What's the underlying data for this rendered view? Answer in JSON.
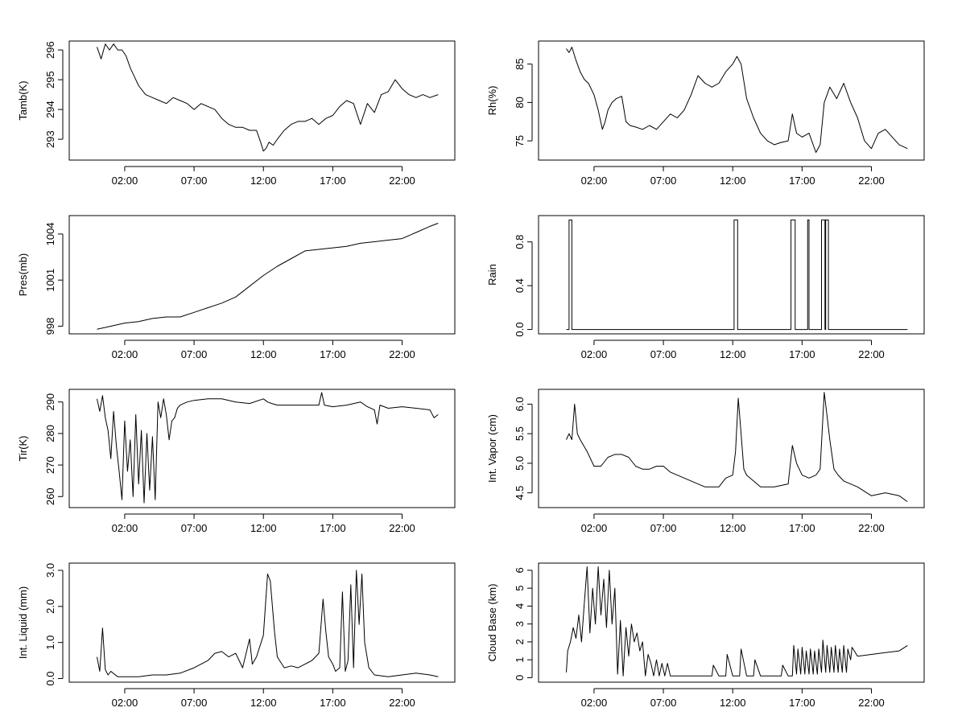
{
  "chart_data": [
    {
      "type": "line",
      "ylabel": "Tamb(K)",
      "x_ticks": [
        "02:00",
        "07:00",
        "12:00",
        "17:00",
        "22:00"
      ],
      "y_ticks": [
        "293",
        "294",
        "295",
        "296"
      ],
      "xlim_hours": [
        -2.0,
        25.8
      ],
      "ylim": [
        292.3,
        296.3
      ],
      "series": [
        {
          "x": [
            0.0,
            0.3,
            0.6,
            0.9,
            1.2,
            1.5,
            1.8,
            2.1,
            2.4,
            2.7,
            3.0,
            3.5,
            4.0,
            4.5,
            5.0,
            5.5,
            6.0,
            6.5,
            7.0,
            7.5,
            8.0,
            8.5,
            9.0,
            9.5,
            10.0,
            10.5,
            11.0,
            11.5,
            11.8,
            12.0,
            12.2,
            12.4,
            12.7,
            13.0,
            13.5,
            14.0,
            14.5,
            15.0,
            15.5,
            16.0,
            16.5,
            17.0,
            17.5,
            18.0,
            18.5,
            19.0,
            19.5,
            20.0,
            20.5,
            21.0,
            21.5,
            22.0,
            22.5,
            23.0,
            23.5,
            24.0,
            24.6
          ],
          "y": [
            296.1,
            295.7,
            296.2,
            296.0,
            296.2,
            296.0,
            296.0,
            295.8,
            295.4,
            295.1,
            294.8,
            294.5,
            294.4,
            294.3,
            294.2,
            294.4,
            294.3,
            294.2,
            294.0,
            294.2,
            294.1,
            294.0,
            293.7,
            293.5,
            293.4,
            293.4,
            293.3,
            293.3,
            292.9,
            292.6,
            292.7,
            292.9,
            292.8,
            293.0,
            293.3,
            293.5,
            293.6,
            293.6,
            293.7,
            293.5,
            293.7,
            293.8,
            294.1,
            294.3,
            294.2,
            293.5,
            294.2,
            293.9,
            294.5,
            294.6,
            295.0,
            294.7,
            294.5,
            294.4,
            294.5,
            294.4,
            294.5
          ]
        }
      ]
    },
    {
      "type": "line",
      "ylabel": "Rh(%)",
      "x_ticks": [
        "02:00",
        "07:00",
        "12:00",
        "17:00",
        "22:00"
      ],
      "y_ticks": [
        "75",
        "80",
        "85"
      ],
      "xlim_hours": [
        -2.0,
        25.8
      ],
      "ylim": [
        72.5,
        88.0
      ],
      "series": [
        {
          "x": [
            0.0,
            0.2,
            0.4,
            0.7,
            1.0,
            1.3,
            1.6,
            2.0,
            2.3,
            2.6,
            2.8,
            3.0,
            3.3,
            3.6,
            4.0,
            4.3,
            4.6,
            5.0,
            5.5,
            6.0,
            6.5,
            7.0,
            7.5,
            8.0,
            8.5,
            9.0,
            9.5,
            10.0,
            10.5,
            11.0,
            11.5,
            12.0,
            12.3,
            12.6,
            13.0,
            13.5,
            14.0,
            14.5,
            15.0,
            15.5,
            16.0,
            16.3,
            16.6,
            17.0,
            17.5,
            18.0,
            18.3,
            18.6,
            19.0,
            19.5,
            20.0,
            20.5,
            21.0,
            21.5,
            22.0,
            22.5,
            23.0,
            23.5,
            24.0,
            24.6
          ],
          "y": [
            87.0,
            86.5,
            87.2,
            85.5,
            84.0,
            83.0,
            82.5,
            81.0,
            79.0,
            76.5,
            77.5,
            79.0,
            80.0,
            80.5,
            80.8,
            77.5,
            77.0,
            76.8,
            76.5,
            77.0,
            76.5,
            77.5,
            78.5,
            78.0,
            79.0,
            81.0,
            83.5,
            82.5,
            82.0,
            82.5,
            84.0,
            85.0,
            86.0,
            85.0,
            80.5,
            78.0,
            76.0,
            75.0,
            74.5,
            74.8,
            75.0,
            78.5,
            76.0,
            75.5,
            76.0,
            73.5,
            74.5,
            80.0,
            82.0,
            80.5,
            82.5,
            80.0,
            78.0,
            75.0,
            74.0,
            76.0,
            76.5,
            75.5,
            74.5,
            74.0
          ]
        }
      ]
    },
    {
      "type": "line",
      "ylabel": "Pres(mb)",
      "x_ticks": [
        "02:00",
        "07:00",
        "12:00",
        "17:00",
        "22:00"
      ],
      "y_ticks": [
        "998",
        "1001",
        "1004"
      ],
      "xlim_hours": [
        -2.0,
        25.8
      ],
      "ylim": [
        997.5,
        1005.2
      ],
      "series": [
        {
          "x": [
            0.0,
            1.0,
            2.0,
            3.0,
            4.0,
            5.0,
            6.0,
            7.0,
            8.0,
            9.0,
            10.0,
            11.0,
            12.0,
            13.0,
            14.0,
            15.0,
            16.0,
            17.0,
            18.0,
            19.0,
            20.0,
            21.0,
            22.0,
            23.0,
            24.0,
            24.6
          ],
          "y": [
            997.8,
            998.0,
            998.2,
            998.3,
            998.5,
            998.6,
            998.6,
            998.9,
            999.2,
            999.5,
            999.9,
            1000.6,
            1001.3,
            1001.9,
            1002.4,
            1002.9,
            1003.0,
            1003.1,
            1003.2,
            1003.4,
            1003.5,
            1003.6,
            1003.7,
            1004.1,
            1004.5,
            1004.7
          ]
        }
      ]
    },
    {
      "type": "line",
      "ylabel": "Rain",
      "x_ticks": [
        "02:00",
        "07:00",
        "12:00",
        "17:00",
        "22:00"
      ],
      "y_ticks": [
        "0.0",
        "0.4",
        "0.8"
      ],
      "xlim_hours": [
        -2.0,
        25.8
      ],
      "ylim": [
        -0.04,
        1.04
      ],
      "series": [
        {
          "x": [
            0.0,
            0.2,
            0.2,
            0.4,
            0.4,
            12.1,
            12.1,
            12.35,
            12.35,
            16.2,
            16.2,
            16.5,
            16.5,
            17.4,
            17.4,
            17.5,
            17.5,
            18.4,
            18.4,
            18.65,
            18.65,
            18.7,
            18.7,
            18.9,
            18.9,
            24.6
          ],
          "y": [
            0,
            0,
            1,
            1,
            0,
            0,
            1,
            1,
            0,
            0,
            1,
            1,
            0,
            0,
            1,
            1,
            0,
            0,
            1,
            1,
            0,
            0,
            1,
            1,
            0,
            0
          ]
        }
      ]
    },
    {
      "type": "line",
      "ylabel": "Tir(K)",
      "x_ticks": [
        "02:00",
        "07:00",
        "12:00",
        "17:00",
        "22:00"
      ],
      "y_ticks": [
        "260",
        "270",
        "280",
        "290"
      ],
      "xlim_hours": [
        -2.0,
        25.8
      ],
      "ylim": [
        256.5,
        294.0
      ],
      "series": [
        {
          "x": [
            0.0,
            0.2,
            0.4,
            0.6,
            0.8,
            1.0,
            1.2,
            1.4,
            1.6,
            1.8,
            2.0,
            2.2,
            2.4,
            2.6,
            2.8,
            3.0,
            3.2,
            3.4,
            3.6,
            3.8,
            4.0,
            4.2,
            4.4,
            4.6,
            4.8,
            5.0,
            5.2,
            5.4,
            5.6,
            5.8,
            6.0,
            6.5,
            7.0,
            8.0,
            9.0,
            10.0,
            11.0,
            12.0,
            12.3,
            12.6,
            13.0,
            14.0,
            15.0,
            16.0,
            16.2,
            16.4,
            17.0,
            18.0,
            19.0,
            19.5,
            20.0,
            20.2,
            20.4,
            21.0,
            22.0,
            23.0,
            24.0,
            24.3,
            24.6
          ],
          "y": [
            291,
            287,
            292,
            285,
            281,
            272,
            287,
            276,
            268,
            259,
            284,
            268,
            278,
            260,
            286,
            264,
            281,
            258,
            280,
            262,
            279,
            259,
            290,
            285,
            291,
            286,
            278,
            284,
            285,
            288,
            289,
            290,
            290.5,
            291,
            291,
            290,
            289.5,
            291,
            290,
            289.5,
            289,
            289,
            289,
            289,
            293,
            289,
            288.5,
            289,
            290,
            288.5,
            287.5,
            283,
            289,
            288,
            288.5,
            288,
            287.5,
            285,
            286
          ]
        }
      ]
    },
    {
      "type": "line",
      "ylabel": "Int. Vapor (cm)",
      "x_ticks": [
        "02:00",
        "07:00",
        "12:00",
        "17:00",
        "22:00"
      ],
      "y_ticks": [
        "4.5",
        "5.0",
        "5.5",
        "6.0"
      ],
      "xlim_hours": [
        -2.0,
        25.8
      ],
      "ylim": [
        4.25,
        6.25
      ],
      "series": [
        {
          "x": [
            0.0,
            0.2,
            0.4,
            0.6,
            0.8,
            1.0,
            1.5,
            2.0,
            2.5,
            3.0,
            3.5,
            4.0,
            4.5,
            5.0,
            5.5,
            6.0,
            6.5,
            7.0,
            7.5,
            8.0,
            9.0,
            10.0,
            11.0,
            11.5,
            12.0,
            12.2,
            12.4,
            12.6,
            12.8,
            13.0,
            13.5,
            14.0,
            15.0,
            16.0,
            16.3,
            16.6,
            17.0,
            17.5,
            18.0,
            18.3,
            18.6,
            18.8,
            19.0,
            19.3,
            19.6,
            20.0,
            21.0,
            22.0,
            23.0,
            24.0,
            24.6
          ],
          "y": [
            5.4,
            5.5,
            5.4,
            6.0,
            5.5,
            5.4,
            5.2,
            4.95,
            4.95,
            5.1,
            5.15,
            5.15,
            5.1,
            4.95,
            4.9,
            4.9,
            4.95,
            4.95,
            4.85,
            4.8,
            4.7,
            4.6,
            4.6,
            4.75,
            4.8,
            5.2,
            6.1,
            5.5,
            4.9,
            4.8,
            4.7,
            4.6,
            4.6,
            4.65,
            5.3,
            5.0,
            4.8,
            4.75,
            4.8,
            4.9,
            6.2,
            5.8,
            5.4,
            4.9,
            4.8,
            4.7,
            4.6,
            4.45,
            4.5,
            4.45,
            4.35
          ]
        }
      ]
    },
    {
      "type": "line",
      "ylabel": "Int. Liquid (mm)",
      "x_ticks": [
        "02:00",
        "07:00",
        "12:00",
        "17:00",
        "22:00"
      ],
      "y_ticks": [
        "0.0",
        "1.0",
        "2.0",
        "3.0"
      ],
      "xlim_hours": [
        -2.0,
        25.8
      ],
      "ylim": [
        -0.1,
        3.2
      ],
      "series": [
        {
          "x": [
            0.0,
            0.2,
            0.4,
            0.6,
            0.8,
            1.0,
            1.5,
            2.0,
            3.0,
            4.0,
            5.0,
            6.0,
            7.0,
            8.0,
            8.5,
            9.0,
            9.5,
            10.0,
            10.5,
            11.0,
            11.2,
            11.5,
            12.0,
            12.3,
            12.5,
            12.8,
            13.0,
            13.5,
            14.0,
            14.5,
            15.0,
            15.5,
            16.0,
            16.3,
            16.5,
            16.7,
            17.0,
            17.2,
            17.5,
            17.7,
            17.9,
            18.1,
            18.3,
            18.5,
            18.7,
            18.9,
            19.1,
            19.3,
            19.6,
            20.0,
            21.0,
            22.0,
            23.0,
            24.0,
            24.6
          ],
          "y": [
            0.6,
            0.2,
            1.4,
            0.25,
            0.1,
            0.2,
            0.05,
            0.05,
            0.05,
            0.1,
            0.1,
            0.15,
            0.3,
            0.5,
            0.7,
            0.75,
            0.6,
            0.7,
            0.3,
            1.1,
            0.4,
            0.6,
            1.2,
            2.9,
            2.7,
            1.3,
            0.6,
            0.3,
            0.35,
            0.3,
            0.4,
            0.5,
            0.7,
            2.2,
            1.3,
            0.6,
            0.4,
            0.2,
            0.3,
            2.4,
            0.2,
            0.5,
            2.6,
            0.3,
            3.0,
            1.5,
            2.9,
            1.0,
            0.3,
            0.1,
            0.05,
            0.1,
            0.15,
            0.1,
            0.05
          ]
        }
      ]
    },
    {
      "type": "line",
      "ylabel": "Cloud Base (km)",
      "x_ticks": [
        "02:00",
        "07:00",
        "12:00",
        "17:00",
        "22:00"
      ],
      "y_ticks": [
        "0",
        "1",
        "2",
        "3",
        "4",
        "5",
        "6"
      ],
      "xlim_hours": [
        -2.0,
        25.8
      ],
      "ylim": [
        -0.25,
        6.4
      ],
      "series": [
        {
          "x": [
            0.0,
            0.1,
            0.3,
            0.5,
            0.7,
            0.9,
            1.1,
            1.3,
            1.5,
            1.7,
            1.9,
            2.1,
            2.3,
            2.5,
            2.7,
            2.9,
            3.1,
            3.3,
            3.5,
            3.7,
            3.9,
            4.1,
            4.3,
            4.5,
            4.7,
            4.9,
            5.1,
            5.3,
            5.5,
            5.7,
            5.9,
            6.1,
            6.3,
            6.5,
            6.7,
            6.9,
            7.1,
            7.3,
            7.5,
            8.0,
            9.0,
            10.0,
            10.5,
            10.6,
            11.0,
            11.5,
            11.6,
            12.0,
            12.5,
            12.6,
            13.0,
            13.5,
            13.6,
            14.0,
            15.0,
            15.5,
            15.6,
            16.0,
            16.3,
            16.4,
            16.6,
            16.7,
            16.9,
            17.0,
            17.2,
            17.3,
            17.5,
            17.6,
            17.8,
            17.9,
            18.1,
            18.2,
            18.4,
            18.5,
            18.7,
            18.8,
            19.0,
            19.1,
            19.3,
            19.4,
            19.6,
            19.7,
            19.9,
            20.0,
            20.2,
            20.3,
            20.5,
            20.6,
            21.0,
            22.0,
            23.0,
            24.0,
            24.6
          ],
          "y": [
            0.3,
            1.5,
            2.0,
            2.8,
            2.2,
            3.5,
            2.0,
            4.2,
            6.2,
            2.5,
            5.0,
            3.0,
            6.2,
            3.5,
            5.5,
            2.8,
            6.0,
            3.0,
            5.0,
            0.2,
            3.2,
            0.1,
            2.8,
            1.2,
            3.0,
            2.0,
            2.5,
            1.5,
            2.0,
            0.1,
            1.3,
            0.8,
            0.1,
            1.0,
            0.1,
            0.8,
            0.1,
            0.8,
            0.1,
            0.1,
            0.1,
            0.1,
            0.1,
            0.7,
            0.1,
            0.1,
            1.3,
            0.1,
            0.1,
            1.6,
            0.1,
            0.1,
            1.0,
            0.1,
            0.1,
            0.1,
            0.7,
            0.1,
            0.1,
            1.8,
            0.2,
            1.6,
            0.2,
            1.7,
            0.2,
            1.5,
            0.2,
            1.6,
            0.2,
            1.5,
            0.2,
            1.6,
            0.3,
            2.1,
            0.3,
            1.8,
            0.3,
            1.7,
            0.3,
            1.8,
            0.3,
            1.6,
            0.3,
            1.8,
            0.3,
            1.6,
            1.0,
            1.7,
            1.2,
            1.3,
            1.4,
            1.5,
            1.8
          ]
        }
      ]
    }
  ]
}
